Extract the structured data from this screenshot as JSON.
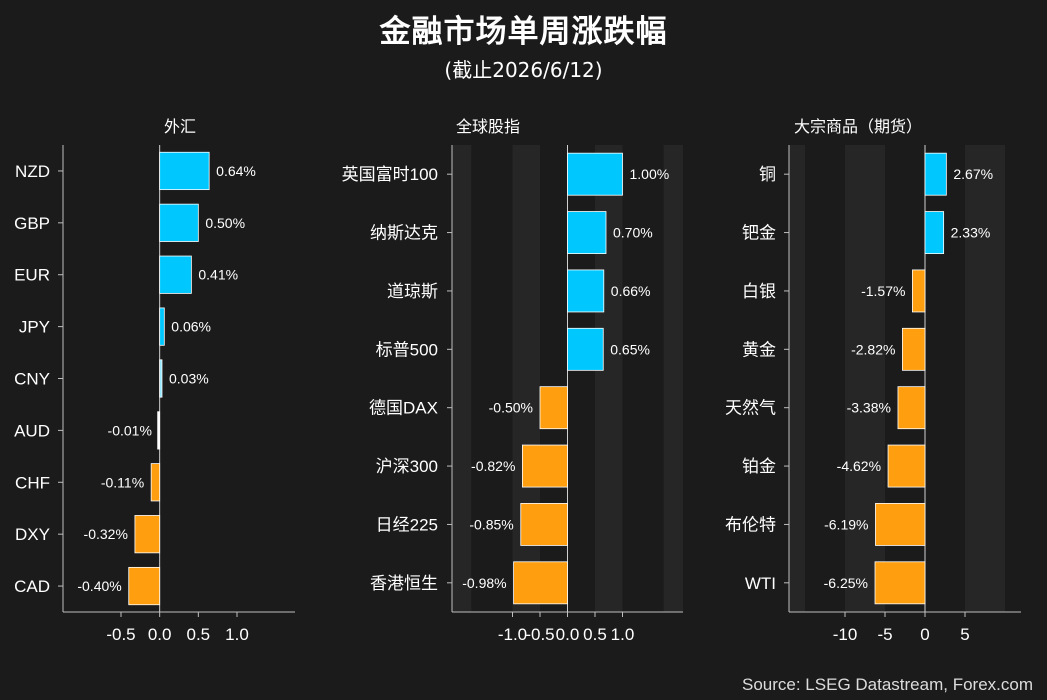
{
  "header": {
    "title": "金融市场单周涨跌幅",
    "subtitle": "(截止2026/6/12)"
  },
  "footer": {
    "source": "Source: LSEG Datastream, Forex.com"
  },
  "colors": {
    "background": "#1b1b1b",
    "positive": "#00c8ff",
    "positive_small": "#8ee6ff",
    "negative": "#ff9f10",
    "band": "#262626"
  },
  "chart_data": [
    {
      "type": "bar",
      "orientation": "horizontal",
      "title": "外汇",
      "categories": [
        "NZD",
        "GBP",
        "EUR",
        "JPY",
        "CNY",
        "AUD",
        "CHF",
        "DXY",
        "CAD"
      ],
      "values": [
        0.64,
        0.5,
        0.41,
        0.06,
        0.03,
        -0.01,
        -0.11,
        -0.32,
        -0.4
      ],
      "value_labels": [
        "0.64%",
        "0.50%",
        "0.41%",
        "0.06%",
        "0.03%",
        "-0.01%",
        "-0.11%",
        "-0.32%",
        "-0.40%"
      ],
      "xticks": [
        -0.5,
        0.0,
        0.5,
        1.0
      ],
      "xtick_labels": [
        "-0.5",
        "0.0",
        "0.5",
        "1.0"
      ],
      "xlim": [
        -1.25,
        1.75
      ],
      "grid": false
    },
    {
      "type": "bar",
      "orientation": "horizontal",
      "title": "全球股指",
      "categories": [
        "英国富时100",
        "纳斯达克",
        "道琼斯",
        "标普500",
        "德国DAX",
        "沪深300",
        "日经225",
        "香港恒生"
      ],
      "values": [
        1.0,
        0.7,
        0.66,
        0.65,
        -0.5,
        -0.82,
        -0.85,
        -0.98
      ],
      "value_labels": [
        "1.00%",
        "0.70%",
        "0.66%",
        "0.65%",
        "-0.50%",
        "-0.82%",
        "-0.85%",
        "-0.98%"
      ],
      "xticks": [
        -1.0,
        -0.5,
        0.0,
        0.5,
        1.0
      ],
      "xtick_labels": [
        "-1.0",
        "-0.5",
        "0.0",
        "0.5",
        "1.0"
      ],
      "xlim": [
        -2.1,
        2.1
      ],
      "grid": false
    },
    {
      "type": "bar",
      "orientation": "horizontal",
      "title": "大宗商品（期货）",
      "categories": [
        "铜",
        "钯金",
        "白银",
        "黄金",
        "天然气",
        "铂金",
        "布伦特",
        "WTI"
      ],
      "values": [
        2.67,
        2.33,
        -1.57,
        -2.82,
        -3.38,
        -4.62,
        -6.19,
        -6.25
      ],
      "value_labels": [
        "2.67%",
        "2.33%",
        "-1.57%",
        "-2.82%",
        "-3.38%",
        "-4.62%",
        "-6.19%",
        "-6.25%"
      ],
      "xticks": [
        -10,
        -5,
        0,
        5
      ],
      "xtick_labels": [
        "-10",
        "-5",
        "0",
        "5"
      ],
      "xlim": [
        -17,
        12
      ],
      "grid": false
    }
  ]
}
